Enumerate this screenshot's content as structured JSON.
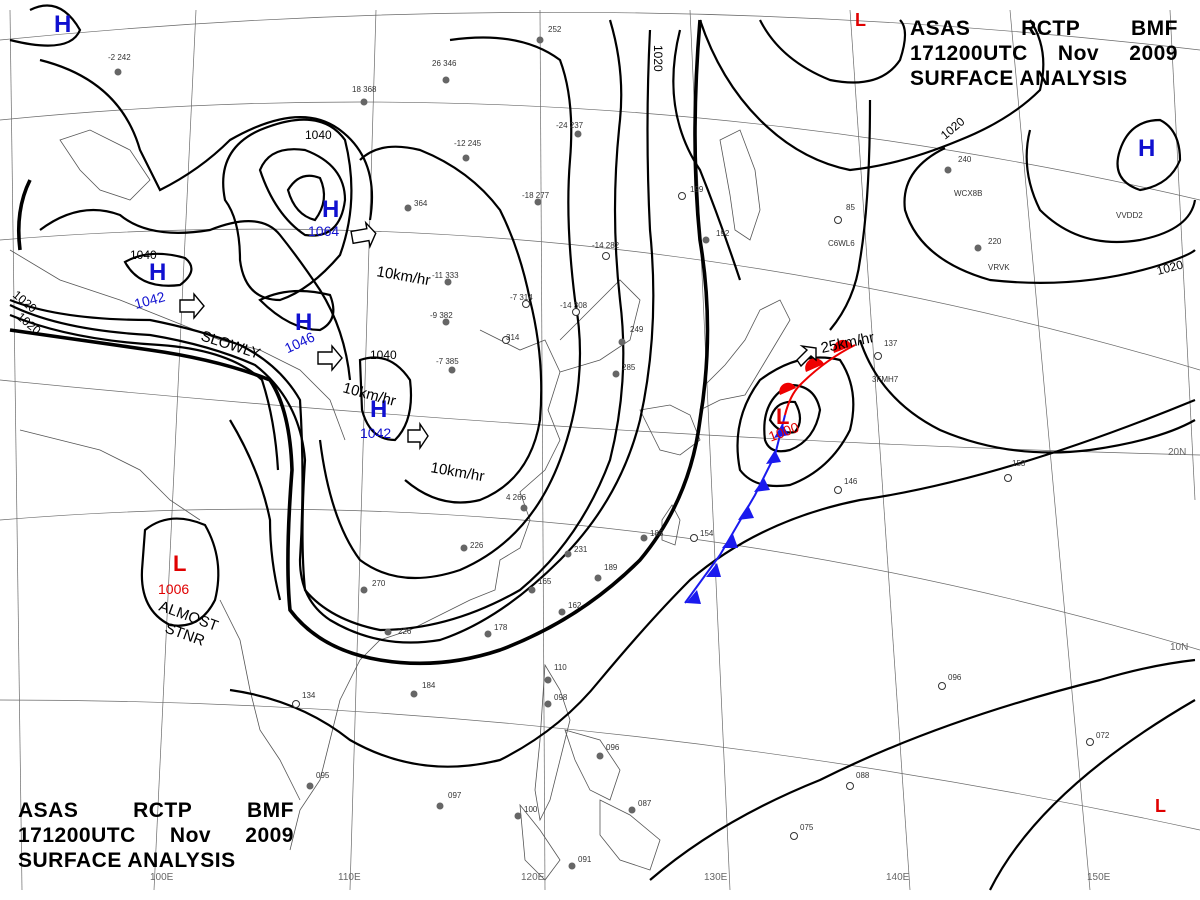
{
  "title": {
    "line1": [
      "ASAS",
      "RCTP",
      "BMF"
    ],
    "line2": [
      "171200UTC",
      "Nov",
      "2009"
    ],
    "line3": "SURFACE ANALYSIS"
  },
  "grid_labels": {
    "lon": [
      "100E",
      "110E",
      "120E",
      "130E",
      "140E",
      "150E"
    ],
    "lat": [
      "20N",
      "10N"
    ]
  },
  "pressure_centers": [
    {
      "type": "H",
      "value": "1064",
      "label": "H"
    },
    {
      "type": "H",
      "value": "1042",
      "label": "H"
    },
    {
      "type": "H",
      "value": "1046",
      "label": "H"
    },
    {
      "type": "H",
      "value": "1042",
      "label": "H"
    },
    {
      "type": "H",
      "value": "",
      "label": "H"
    },
    {
      "type": "H",
      "value": "",
      "label": "H"
    },
    {
      "type": "L",
      "value": "1006",
      "label": "L"
    },
    {
      "type": "L",
      "value": "1000",
      "label": "L"
    },
    {
      "type": "L",
      "value": "",
      "label": "L"
    },
    {
      "type": "L",
      "value": "",
      "label": "L"
    }
  ],
  "isobar_labels": [
    "1020",
    "1020",
    "1020",
    "1020",
    "1040",
    "1040",
    "1040"
  ],
  "motion_labels": [
    "10km/hr",
    "10km/hr",
    "10km/hr",
    "SLOWLY",
    "25km/hr"
  ],
  "stationary_note": [
    "ALMOST",
    "STNR"
  ],
  "colors": {
    "high": "#1010d0",
    "low": "#e00000",
    "cold_front": "#1a1aee",
    "warm_front": "#ee0000",
    "isobar": "#000000"
  },
  "stations": [
    "-2 242",
    "26 346",
    "18 368",
    "-12 245",
    "-24 237",
    "-18 277",
    "-14 282",
    "-11 333",
    "-7 314",
    "-14 308",
    "-9 382",
    "-7 385",
    "314",
    "249",
    "285",
    "199",
    "192",
    "240",
    "220",
    "85",
    "137",
    "153",
    "146",
    "226",
    "231",
    "189",
    "188",
    "154",
    "165",
    "162",
    "178",
    "270",
    "226",
    "184",
    "134",
    "095",
    "097",
    "100",
    "091",
    "110",
    "098",
    "096",
    "087",
    "088",
    "075",
    "072",
    "096",
    "252",
    "364",
    "4 266"
  ],
  "ship_ids": [
    "C6WL6",
    "WCX8B",
    "VRVK",
    "3FMH7",
    "VVDD2"
  ]
}
